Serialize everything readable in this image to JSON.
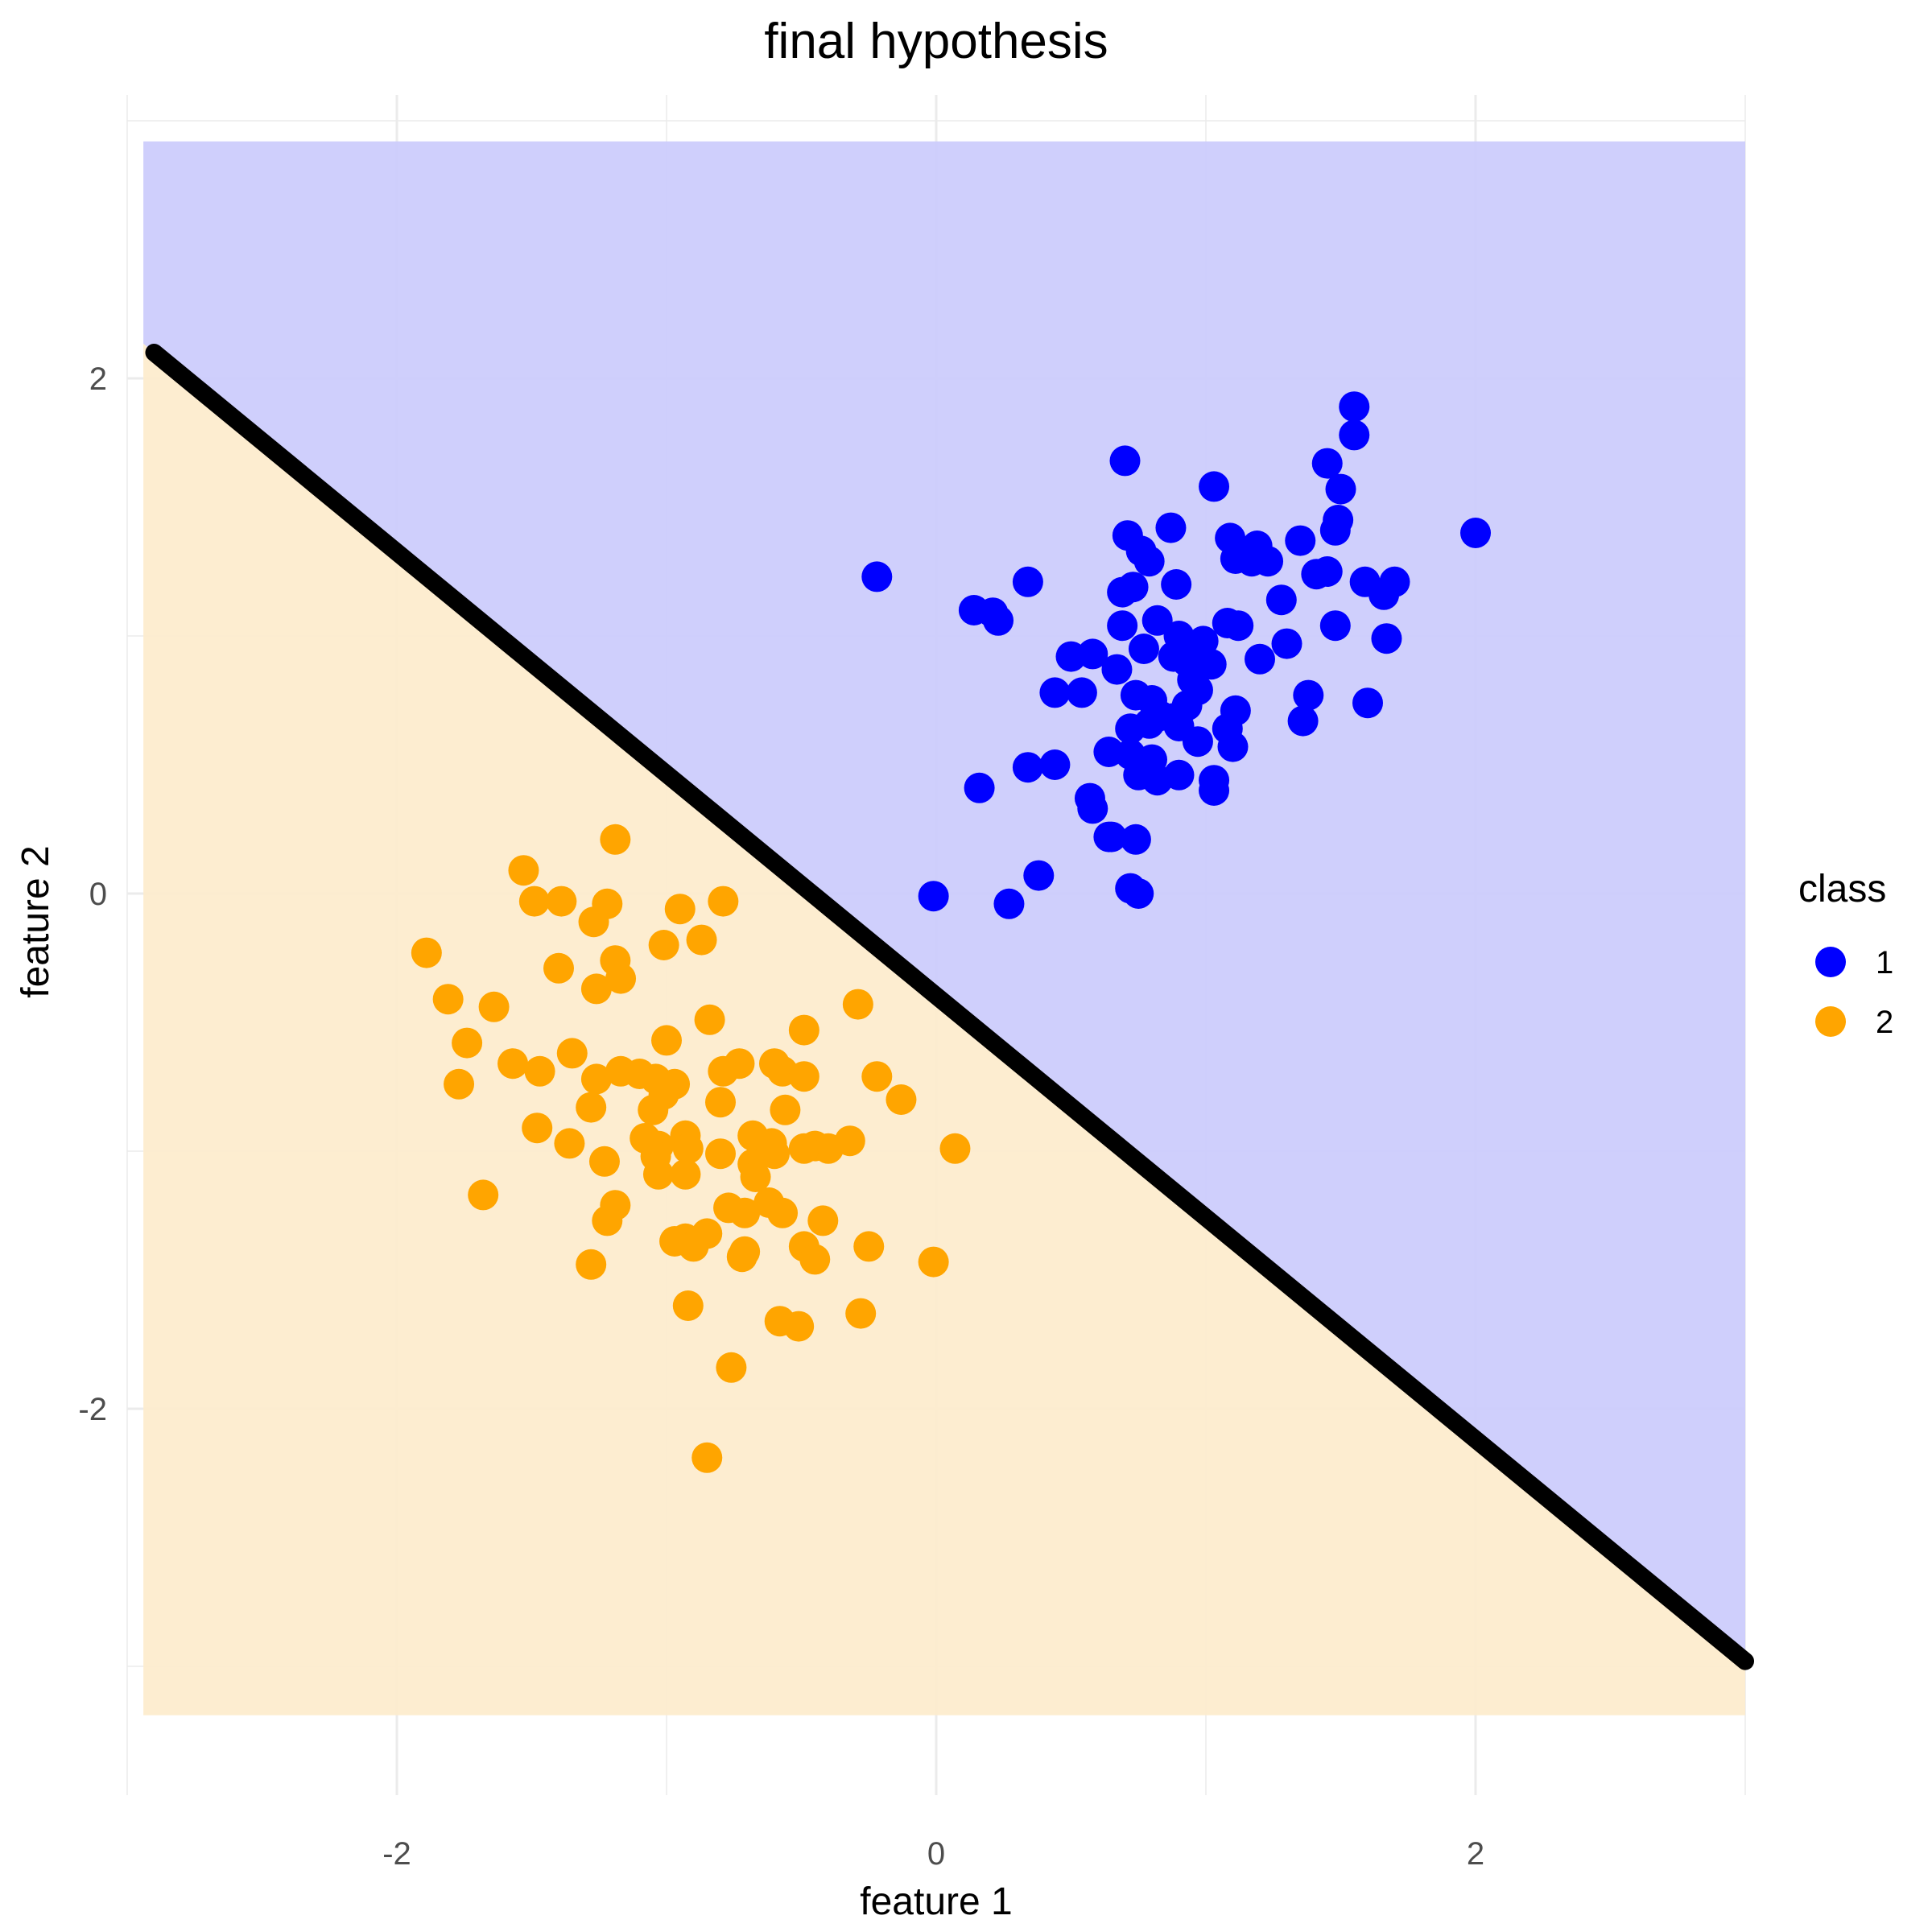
{
  "chart_data": {
    "type": "scatter",
    "title": "final hypothesis",
    "xlabel": "feature 1",
    "ylabel": "feature 2",
    "xlim": [
      -3.0,
      3.0
    ],
    "ylim": [
      -3.5,
      3.1
    ],
    "x_ticks": [
      -2,
      0,
      2
    ],
    "x_tick_labels": [
      "-2",
      "0",
      "2"
    ],
    "y_ticks": [
      2,
      0,
      -2
    ],
    "y_tick_labels": [
      "2",
      "0",
      "-2"
    ],
    "grid": true,
    "legend": {
      "title": "class",
      "placement": "right",
      "entries": [
        {
          "label": "1",
          "color": "#0000ff"
        },
        {
          "label": "2",
          "color": "#ffa500"
        }
      ]
    },
    "regions": [
      {
        "class": "1",
        "color": "#ccccfc",
        "side": "above boundary"
      },
      {
        "class": "2",
        "color": "#fdecce",
        "side": "below boundary"
      }
    ],
    "region_extent": {
      "x": [
        -2.94,
        3.0
      ],
      "y": [
        -3.19,
        2.92
      ]
    },
    "decision_boundary": {
      "color": "#000000",
      "points": [
        [
          -2.9,
          2.1
        ],
        [
          3.0,
          -2.98
        ]
      ]
    },
    "series": [
      {
        "name": "1",
        "color": "#0000ff",
        "points": [
          [
            1.55,
            1.89
          ],
          [
            1.55,
            1.78
          ],
          [
            1.45,
            1.67
          ],
          [
            1.5,
            1.57
          ],
          [
            0.7,
            1.68
          ],
          [
            1.03,
            1.58
          ],
          [
            1.49,
            1.45
          ],
          [
            1.48,
            1.41
          ],
          [
            0.87,
            1.42
          ],
          [
            2.0,
            1.4
          ],
          [
            0.71,
            1.39
          ],
          [
            1.09,
            1.38
          ],
          [
            1.35,
            1.37
          ],
          [
            1.19,
            1.35
          ],
          [
            0.76,
            1.33
          ],
          [
            1.11,
            1.3
          ],
          [
            1.17,
            1.29
          ],
          [
            1.23,
            1.29
          ],
          [
            1.41,
            1.24
          ],
          [
            1.45,
            1.25
          ],
          [
            0.79,
            1.29
          ],
          [
            1.59,
            1.21
          ],
          [
            1.7,
            1.21
          ],
          [
            -0.22,
            1.23
          ],
          [
            0.34,
            1.21
          ],
          [
            0.73,
            1.19
          ],
          [
            0.69,
            1.17
          ],
          [
            0.89,
            1.2
          ],
          [
            1.66,
            1.16
          ],
          [
            1.28,
            1.14
          ],
          [
            0.14,
            1.1
          ],
          [
            0.21,
            1.09
          ],
          [
            0.23,
            1.06
          ],
          [
            0.82,
            1.06
          ],
          [
            1.08,
            1.05
          ],
          [
            1.12,
            1.04
          ],
          [
            0.69,
            1.04
          ],
          [
            0.9,
            1.0
          ],
          [
            1.48,
            1.04
          ],
          [
            1.67,
            0.99
          ],
          [
            1.3,
            0.97
          ],
          [
            0.99,
            0.98
          ],
          [
            0.77,
            0.95
          ],
          [
            0.88,
            0.92
          ],
          [
            0.5,
            0.92
          ],
          [
            0.58,
            0.93
          ],
          [
            1.02,
            0.89
          ],
          [
            0.67,
            0.87
          ],
          [
            0.93,
            0.9
          ],
          [
            1.2,
            0.91
          ],
          [
            0.95,
            0.83
          ],
          [
            0.97,
            0.79
          ],
          [
            0.54,
            0.78
          ],
          [
            0.44,
            0.78
          ],
          [
            1.38,
            0.77
          ],
          [
            0.74,
            0.77
          ],
          [
            0.8,
            0.75
          ],
          [
            1.6,
            0.74
          ],
          [
            0.93,
            0.73
          ],
          [
            1.11,
            0.71
          ],
          [
            0.83,
            0.69
          ],
          [
            0.88,
            0.68
          ],
          [
            0.79,
            0.66
          ],
          [
            1.36,
            0.67
          ],
          [
            0.72,
            0.64
          ],
          [
            0.9,
            0.65
          ],
          [
            1.08,
            0.64
          ],
          [
            0.97,
            0.59
          ],
          [
            1.1,
            0.57
          ],
          [
            0.64,
            0.55
          ],
          [
            0.72,
            0.54
          ],
          [
            0.8,
            0.52
          ],
          [
            0.34,
            0.49
          ],
          [
            0.44,
            0.5
          ],
          [
            0.75,
            0.46
          ],
          [
            0.9,
            0.46
          ],
          [
            0.82,
            0.44
          ],
          [
            1.03,
            0.44
          ],
          [
            0.16,
            0.41
          ],
          [
            1.03,
            0.4
          ],
          [
            0.57,
            0.37
          ],
          [
            0.58,
            0.33
          ],
          [
            0.64,
            0.22
          ],
          [
            0.74,
            0.21
          ],
          [
            0.65,
            0.22
          ],
          [
            0.38,
            0.07
          ],
          [
            0.72,
            0.02
          ],
          [
            0.75,
            0.0
          ],
          [
            -0.01,
            -0.01
          ],
          [
            0.27,
            -0.04
          ]
        ]
      },
      {
        "name": "2",
        "color": "#ffa500",
        "points": [
          [
            -1.19,
            0.21
          ],
          [
            -1.53,
            0.09
          ],
          [
            -1.49,
            -0.03
          ],
          [
            -1.39,
            -0.03
          ],
          [
            -1.22,
            -0.04
          ],
          [
            -0.79,
            -0.03
          ],
          [
            -0.95,
            -0.06
          ],
          [
            -1.27,
            -0.11
          ],
          [
            -0.87,
            -0.18
          ],
          [
            -1.01,
            -0.2
          ],
          [
            -1.89,
            -0.23
          ],
          [
            -1.19,
            -0.26
          ],
          [
            -1.4,
            -0.29
          ],
          [
            -1.17,
            -0.33
          ],
          [
            -1.26,
            -0.37
          ],
          [
            -1.81,
            -0.41
          ],
          [
            -1.64,
            -0.44
          ],
          [
            -0.29,
            -0.43
          ],
          [
            -0.84,
            -0.49
          ],
          [
            -0.49,
            -0.53
          ],
          [
            -1.0,
            -0.57
          ],
          [
            -1.74,
            -0.58
          ],
          [
            -1.35,
            -0.62
          ],
          [
            -1.57,
            -0.66
          ],
          [
            -0.6,
            -0.66
          ],
          [
            -0.73,
            -0.66
          ],
          [
            -1.47,
            -0.69
          ],
          [
            -0.79,
            -0.69
          ],
          [
            -1.17,
            -0.69
          ],
          [
            -1.1,
            -0.7
          ],
          [
            -0.57,
            -0.69
          ],
          [
            -0.49,
            -0.71
          ],
          [
            -1.26,
            -0.72
          ],
          [
            -1.04,
            -0.72
          ],
          [
            -0.22,
            -0.71
          ],
          [
            -1.77,
            -0.74
          ],
          [
            -0.97,
            -0.74
          ],
          [
            -1.01,
            -0.78
          ],
          [
            -0.8,
            -0.81
          ],
          [
            -0.13,
            -0.8
          ],
          [
            -1.28,
            -0.83
          ],
          [
            -1.05,
            -0.84
          ],
          [
            -0.56,
            -0.84
          ],
          [
            -1.48,
            -0.91
          ],
          [
            -0.68,
            -0.94
          ],
          [
            -0.93,
            -0.94
          ],
          [
            -1.08,
            -0.95
          ],
          [
            -0.32,
            -0.96
          ],
          [
            -1.36,
            -0.97
          ],
          [
            -1.03,
            -0.98
          ],
          [
            -0.61,
            -0.97
          ],
          [
            -0.45,
            -0.98
          ],
          [
            -0.6,
            -1.01
          ],
          [
            -0.92,
            -0.99
          ],
          [
            -0.8,
            -1.01
          ],
          [
            -0.4,
            -0.99
          ],
          [
            0.07,
            -0.99
          ],
          [
            -0.49,
            -0.99
          ],
          [
            -1.04,
            -1.02
          ],
          [
            -0.68,
            -1.05
          ],
          [
            -0.67,
            -1.1
          ],
          [
            -1.23,
            -1.04
          ],
          [
            -0.93,
            -1.09
          ],
          [
            -1.03,
            -1.09
          ],
          [
            -1.68,
            -1.17
          ],
          [
            -0.62,
            -1.2
          ],
          [
            -0.77,
            -1.22
          ],
          [
            -1.19,
            -1.21
          ],
          [
            -0.71,
            -1.24
          ],
          [
            -0.57,
            -1.24
          ],
          [
            -1.22,
            -1.27
          ],
          [
            -0.42,
            -1.27
          ],
          [
            -0.85,
            -1.32
          ],
          [
            -0.93,
            -1.34
          ],
          [
            -0.97,
            -1.35
          ],
          [
            -0.25,
            -1.37
          ],
          [
            -0.71,
            -1.39
          ],
          [
            -0.49,
            -1.37
          ],
          [
            -0.9,
            -1.37
          ],
          [
            -0.72,
            -1.41
          ],
          [
            -0.45,
            -1.42
          ],
          [
            -1.28,
            -1.44
          ],
          [
            -0.01,
            -1.43
          ],
          [
            -0.92,
            -1.6
          ],
          [
            -0.28,
            -1.63
          ],
          [
            -0.58,
            -1.66
          ],
          [
            -0.51,
            -1.68
          ],
          [
            -0.76,
            -1.84
          ],
          [
            -0.85,
            -2.19
          ]
        ]
      }
    ]
  }
}
